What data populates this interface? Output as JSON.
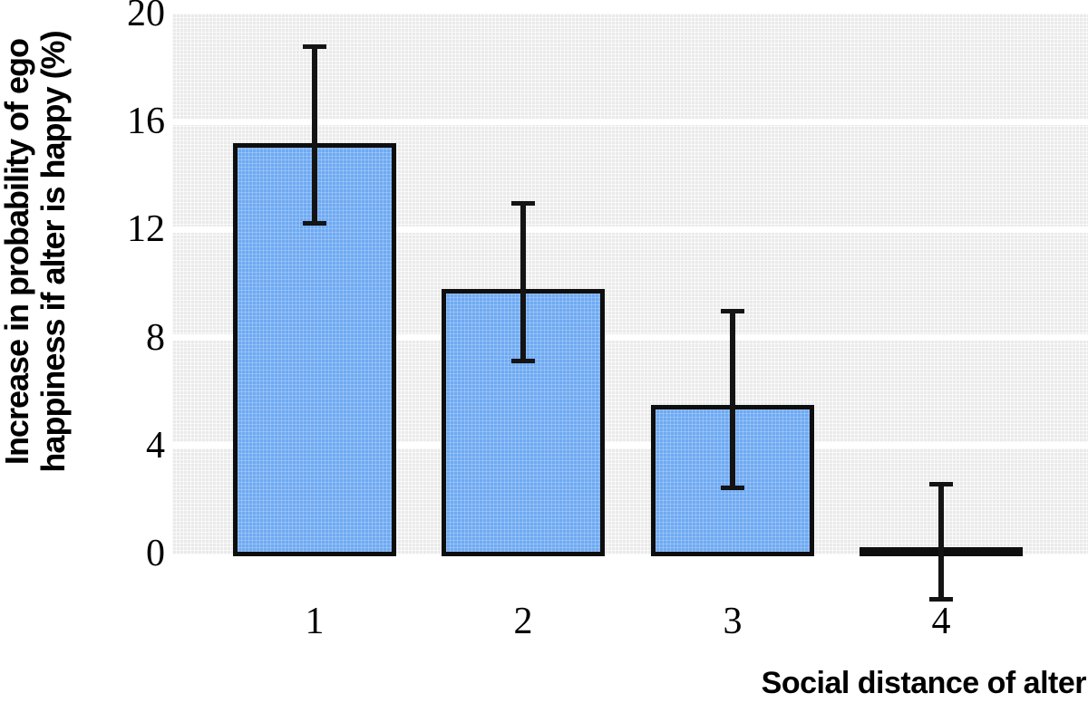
{
  "figure": {
    "background": "#ffffff",
    "plot_background": "#eaeaea",
    "gridline_color": "#ffffff",
    "bar_fill": "#6faaf2",
    "bar_border": "#0e0e0e",
    "error_bar_color": "#141414",
    "text_color": "#000000"
  },
  "chart_data": {
    "type": "bar",
    "title": "",
    "xlabel": "Social distance of alter",
    "ylabel": "Increase in probability of ego happiness if alter is happy (%)",
    "ylabel_lines": [
      "Increase in probability of ego",
      "happiness if alter is happy (%)"
    ],
    "categories": [
      "1",
      "2",
      "3",
      "4"
    ],
    "values": [
      15.2,
      9.8,
      5.5,
      0.25
    ],
    "error_low": [
      12.2,
      7.1,
      2.4,
      -1.7
    ],
    "error_high": [
      18.8,
      13.0,
      9.0,
      2.6
    ],
    "ylim": [
      0,
      20
    ],
    "yticks": [
      0,
      4,
      8,
      12,
      16,
      20
    ],
    "grid": "horizontal white bands at yticks",
    "legend": "none",
    "error_bars": "vertical with caps, drawn over bars"
  }
}
